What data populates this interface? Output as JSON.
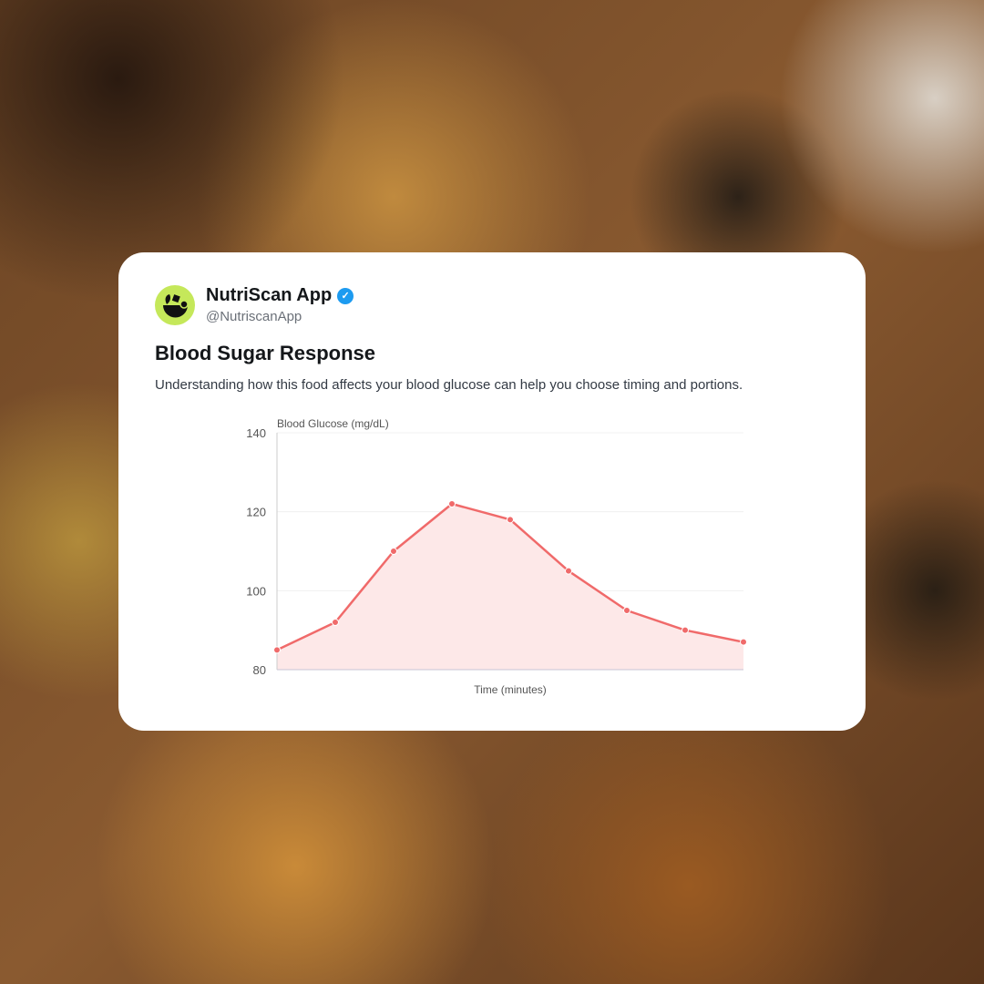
{
  "post": {
    "name": "NutriScan App",
    "handle": "@NutriscanApp",
    "verified": true,
    "title": "Blood Sugar Response",
    "description": "Understanding how this food affects your blood glucose can help you choose timing and portions.",
    "accent": "#c5e85a",
    "verified_color": "#1d9bf0"
  },
  "chart_data": {
    "type": "line",
    "title": "",
    "ylabel": "Blood Glucose (mg/dL)",
    "xlabel": "Time (minutes)",
    "ylim": [
      80,
      140
    ],
    "yticks": [
      80,
      100,
      120,
      140
    ],
    "grid": true,
    "fill": "area",
    "color": "#f06a6a",
    "values": [
      85,
      92,
      110,
      122,
      118,
      105,
      95,
      90,
      87
    ]
  }
}
